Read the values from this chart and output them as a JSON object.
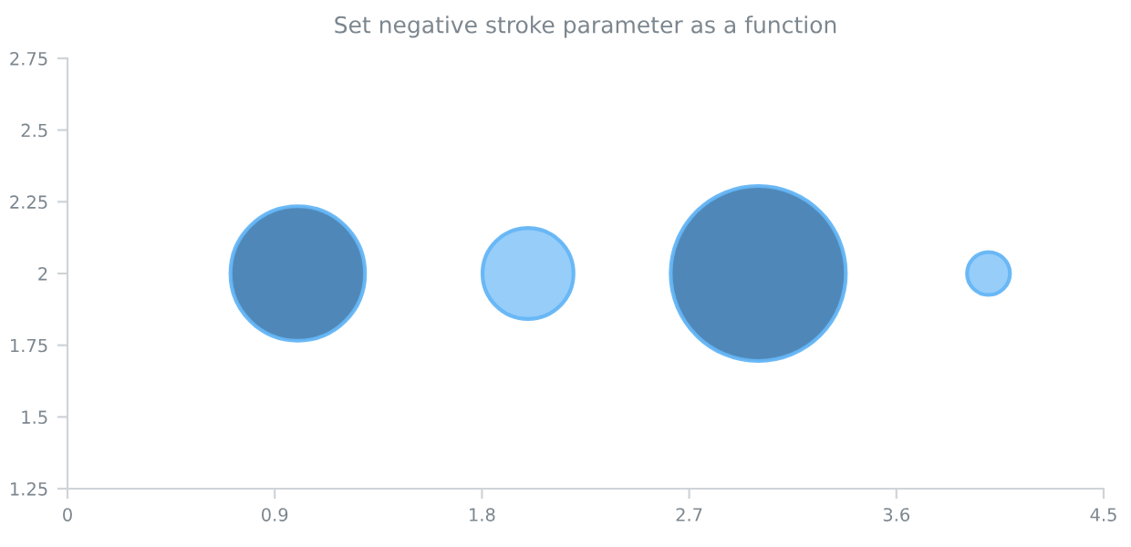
{
  "chart_data": {
    "type": "bubble",
    "title": "Set negative stroke parameter as a function",
    "x": [
      1,
      2,
      3,
      4
    ],
    "values": [
      2,
      2,
      2,
      2
    ],
    "sizes": [
      0.59,
      0.27,
      1,
      0.06
    ],
    "colors": [
      "#4682b4",
      "#90caf9",
      "#4682b4",
      "#90caf9"
    ],
    "xlim": [
      0,
      4.5
    ],
    "xticks": [
      0,
      0.9,
      1.8,
      2.7,
      3.6,
      4.5
    ],
    "ylim": [
      1.25,
      2.75
    ],
    "yticks": [
      1.25,
      1.5,
      1.75,
      2,
      2.25,
      2.5,
      2.75
    ],
    "grid": false
  }
}
